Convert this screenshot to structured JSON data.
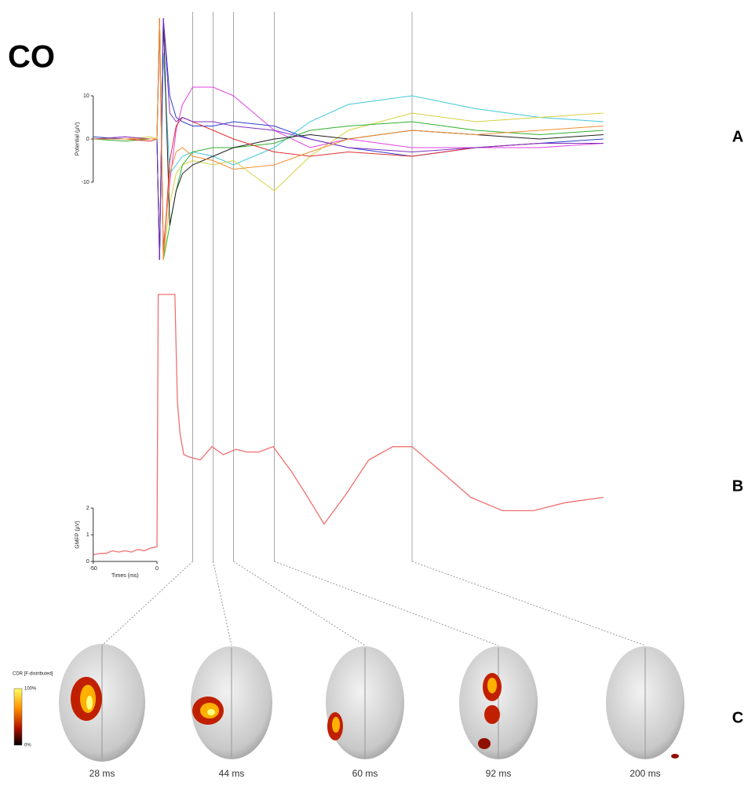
{
  "title": "CO",
  "panel_labels": [
    "A",
    "B",
    "C"
  ],
  "chart_data": [
    {
      "type": "line",
      "ylabel": "Potential (µV)",
      "x": [
        -50,
        -25,
        -5,
        0,
        2,
        5,
        10,
        15,
        20,
        28,
        44,
        60,
        92,
        120,
        150,
        200,
        250,
        300,
        350
      ],
      "xlim": [
        -50,
        350
      ],
      "ylim": [
        -30,
        30
      ],
      "yticks": [
        -10,
        0,
        10
      ],
      "series": [
        {
          "color": "#e040e0",
          "values": [
            0,
            0.5,
            0,
            0,
            25,
            -25,
            -10,
            2,
            8,
            12,
            12,
            10,
            2,
            -2,
            0,
            -2,
            -2,
            -2,
            -1
          ]
        },
        {
          "color": "#40c8d8",
          "values": [
            0,
            0,
            0,
            0,
            -28,
            20,
            -8,
            -6,
            -4,
            -3,
            -4,
            -6,
            -2,
            4,
            8,
            10,
            7,
            5,
            4
          ]
        },
        {
          "color": "#d8d040",
          "values": [
            0,
            0,
            0.5,
            0,
            28,
            -28,
            -15,
            -8,
            -6,
            -5,
            -6,
            -5,
            -12,
            -4,
            2,
            6,
            4,
            5,
            6
          ]
        },
        {
          "color": "#3040d0",
          "values": [
            0.5,
            0,
            0,
            0,
            -28,
            28,
            10,
            5,
            4,
            3,
            3,
            4,
            3,
            0,
            -2,
            -4,
            -2,
            -1,
            0
          ]
        },
        {
          "color": "#30b030",
          "values": [
            0,
            -0.5,
            0,
            0,
            28,
            -28,
            -20,
            -12,
            -6,
            -3,
            -2,
            -2,
            -1,
            2,
            3,
            4,
            2,
            1,
            2
          ]
        },
        {
          "color": "#202020",
          "values": [
            0,
            0,
            0,
            0,
            -28,
            28,
            -20,
            -12,
            -8,
            -6,
            -4,
            -2,
            0,
            1,
            0,
            2,
            1,
            0,
            1
          ]
        },
        {
          "color": "#e03030",
          "values": [
            0,
            0,
            -0.5,
            0,
            28,
            -28,
            -5,
            3,
            5,
            4,
            2,
            0,
            -3,
            -4,
            -3,
            -4,
            -2,
            -1,
            -1
          ]
        },
        {
          "color": "#8030c0",
          "values": [
            0,
            0.5,
            0,
            0,
            -28,
            28,
            6,
            4,
            5,
            4,
            4,
            3,
            2,
            0,
            -2,
            -3,
            -2,
            -1,
            -1
          ]
        },
        {
          "color": "#f09030",
          "values": [
            0,
            0,
            0,
            0,
            28,
            -28,
            -8,
            -3,
            -2,
            -4,
            -5,
            -7,
            -6,
            -3,
            0,
            2,
            1,
            2,
            3
          ]
        }
      ]
    },
    {
      "type": "line",
      "ylabel": "GMFP (µV)",
      "xlabel": "Times (ms)",
      "color": "#f07070",
      "x": [
        -50,
        -45,
        -40,
        -35,
        -30,
        -25,
        -20,
        -15,
        -10,
        -5,
        0,
        1,
        14,
        16,
        18,
        21,
        26,
        34,
        43,
        52,
        62,
        70,
        80,
        91,
        105,
        117,
        131,
        148,
        166,
        185,
        200,
        222,
        246,
        271,
        295,
        320,
        350
      ],
      "values": [
        0.25,
        0.3,
        0.3,
        0.4,
        0.35,
        0.4,
        0.35,
        0.45,
        0.4,
        0.5,
        0.55,
        10,
        10,
        6,
        4.8,
        4.0,
        3.9,
        3.8,
        4.3,
        4.0,
        4.2,
        4.1,
        4.1,
        4.3,
        3.4,
        2.5,
        1.4,
        2.5,
        3.8,
        4.3,
        4.3,
        3.4,
        2.4,
        1.9,
        1.9,
        2.2,
        2.4
      ],
      "xlim": [
        -50,
        350
      ],
      "ylim": [
        0,
        10
      ],
      "xticks": [
        -50,
        0
      ],
      "yticks": [
        0,
        1,
        2
      ]
    }
  ],
  "time_markers": [
    {
      "value": 28,
      "label": "28 ms"
    },
    {
      "value": 44,
      "label": "44 ms"
    },
    {
      "value": 60,
      "label": "60 ms"
    },
    {
      "value": 92,
      "label": "92 ms"
    },
    {
      "value": 200,
      "label": "200 ms"
    }
  ],
  "colorbar": {
    "title": "CDR [F-distributed]",
    "max_label": "100%",
    "min_label": "0%"
  }
}
